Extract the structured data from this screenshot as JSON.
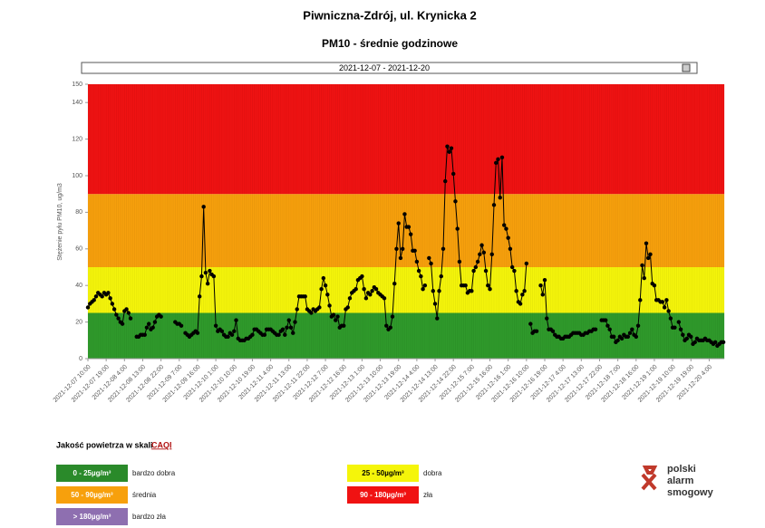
{
  "chart_data": {
    "type": "line",
    "title": "Piwniczna-Zdrój, ul. Krynicka 2",
    "subtitle": "PM10 - średnie godzinowe",
    "date_range": "2021-12-07  -  2021-12-20",
    "y_label": "Stężenie pyłu PM10, ug/m3",
    "color": "#000000",
    "ylim": [
      0,
      150
    ],
    "yticks": [
      0,
      20,
      40,
      60,
      80,
      100,
      120,
      140,
      150
    ],
    "bands": [
      {
        "from": 0,
        "to": 25,
        "color": "#2f9a2b"
      },
      {
        "from": 25,
        "to": 50,
        "color": "#f5f50a"
      },
      {
        "from": 50,
        "to": 90,
        "color": "#f7a00c"
      },
      {
        "from": 90,
        "to": 150,
        "color": "#f01212"
      }
    ],
    "categories": [
      "2021-12-07 10:00",
      null,
      null,
      null,
      null,
      null,
      null,
      null,
      null,
      "2021-12-07 19:00",
      null,
      null,
      null,
      null,
      null,
      null,
      null,
      null,
      "2021-12-08 4:00",
      null,
      null,
      null,
      null,
      null,
      null,
      null,
      null,
      "2021-12-08 13:00",
      null,
      null,
      null,
      null,
      null,
      null,
      null,
      null,
      "2021-12-08 22:00",
      null,
      null,
      null,
      null,
      null,
      null,
      null,
      null,
      "2021-12-09 7:00",
      null,
      null,
      null,
      null,
      null,
      null,
      null,
      null,
      "2021-12-09 16:00",
      null,
      null,
      null,
      null,
      null,
      null,
      null,
      null,
      "2021-12-10 1:00",
      null,
      null,
      null,
      null,
      null,
      null,
      null,
      null,
      "2021-12-10 10:00",
      null,
      null,
      null,
      null,
      null,
      null,
      null,
      null,
      "2021-12-10 19:00",
      null,
      null,
      null,
      null,
      null,
      null,
      null,
      null,
      "2021-12-11 4:00",
      null,
      null,
      null,
      null,
      null,
      null,
      null,
      null,
      "2021-12-11 13:00",
      null,
      null,
      null,
      null,
      null,
      null,
      null,
      null,
      "2021-12-11 22:00",
      null,
      null,
      null,
      null,
      null,
      null,
      null,
      null,
      "2021-12-12 7:00",
      null,
      null,
      null,
      null,
      null,
      null,
      null,
      null,
      "2021-12-12 16:00",
      null,
      null,
      null,
      null,
      null,
      null,
      null,
      null,
      "2021-12-13 1:00",
      null,
      null,
      null,
      null,
      null,
      null,
      null,
      null,
      "2021-12-13 10:00",
      null,
      null,
      null,
      null,
      null,
      null,
      null,
      null,
      "2021-12-13 19:00",
      null,
      null,
      null,
      null,
      null,
      null,
      null,
      null,
      "2021-12-14 4:00",
      null,
      null,
      null,
      null,
      null,
      null,
      null,
      null,
      "2021-12-14 13:00",
      null,
      null,
      null,
      null,
      null,
      null,
      null,
      null,
      "2021-12-14 22:00",
      null,
      null,
      null,
      null,
      null,
      null,
      null,
      null,
      "2021-12-15 7:00",
      null,
      null,
      null,
      null,
      null,
      null,
      null,
      null,
      "2021-12-15 16:00",
      null,
      null,
      null,
      null,
      null,
      null,
      null,
      null,
      "2021-12-16 1:00",
      null,
      null,
      null,
      null,
      null,
      null,
      null,
      null,
      "2021-12-16 10:00",
      null,
      null,
      null,
      null,
      null,
      null,
      null,
      null,
      "2021-12-16 19:00",
      null,
      null,
      null,
      null,
      null,
      null,
      null,
      null,
      "2021-12-17 4:00",
      null,
      null,
      null,
      null,
      null,
      null,
      null,
      null,
      "2021-12-17 13:00",
      null,
      null,
      null,
      null,
      null,
      null,
      null,
      null,
      "2021-12-17 22:00",
      null,
      null,
      null,
      null,
      null,
      null,
      null,
      null,
      "2021-12-18 7:00",
      null,
      null,
      null,
      null,
      null,
      null,
      null,
      null,
      "2021-12-18 16:00",
      null,
      null,
      null,
      null,
      null,
      null,
      null,
      null,
      "2021-12-19 1:00",
      null,
      null,
      null,
      null,
      null,
      null,
      null,
      null,
      "2021-12-19 10:00",
      null,
      null,
      null,
      null,
      null,
      null,
      null,
      null,
      "2021-12-19 19:00",
      null,
      null,
      null,
      null,
      null,
      null,
      null,
      null,
      "2021-12-20 4:00",
      null,
      null,
      null,
      null,
      null,
      null,
      null
    ],
    "values": [
      28,
      30,
      31,
      32,
      34,
      36,
      35,
      34,
      36,
      35,
      36,
      33,
      30,
      27,
      24,
      22,
      20,
      19,
      26,
      27,
      25,
      22,
      null,
      null,
      12,
      12,
      13,
      13,
      13,
      17,
      19,
      16,
      17,
      20,
      23,
      24,
      23,
      null,
      null,
      null,
      null,
      null,
      null,
      20,
      19,
      19,
      18,
      null,
      14,
      13,
      12,
      13,
      14,
      15,
      14,
      34,
      45,
      83,
      47,
      41,
      48,
      46,
      45,
      18,
      15,
      16,
      15,
      13,
      12,
      12,
      14,
      13,
      15,
      21,
      11,
      10,
      10,
      10,
      11,
      11,
      12,
      13,
      16,
      16,
      15,
      14,
      13,
      13,
      16,
      16,
      16,
      15,
      14,
      13,
      13,
      15,
      16,
      13,
      17,
      21,
      17,
      14,
      20,
      27,
      34,
      34,
      34,
      34,
      27,
      26,
      25,
      27,
      26,
      27,
      28,
      38,
      44,
      40,
      35,
      29,
      23,
      24,
      21,
      23,
      17,
      18,
      18,
      27,
      28,
      33,
      36,
      37,
      38,
      43,
      44,
      45,
      38,
      33,
      36,
      35,
      37,
      39,
      38,
      36,
      35,
      34,
      33,
      18,
      16,
      17,
      23,
      41,
      60,
      74,
      55,
      60,
      79,
      72,
      72,
      68,
      59,
      59,
      53,
      48,
      45,
      38,
      40,
      null,
      55,
      52,
      37,
      30,
      22,
      37,
      45,
      60,
      97,
      116,
      113,
      115,
      101,
      86,
      71,
      53,
      40,
      40,
      40,
      36,
      37,
      37,
      48,
      50,
      53,
      57,
      62,
      58,
      48,
      40,
      38,
      57,
      84,
      107,
      109,
      88,
      110,
      73,
      71,
      66,
      60,
      50,
      48,
      37,
      31,
      30,
      35,
      37,
      52,
      null,
      19,
      14,
      15,
      15,
      null,
      40,
      35,
      43,
      22,
      16,
      16,
      15,
      13,
      12,
      12,
      11,
      11,
      12,
      12,
      12,
      13,
      14,
      14,
      14,
      14,
      13,
      13,
      14,
      14,
      15,
      15,
      16,
      16,
      null,
      null,
      21,
      21,
      21,
      18,
      16,
      12,
      12,
      9,
      10,
      12,
      11,
      13,
      12,
      12,
      14,
      16,
      13,
      12,
      18,
      32,
      51,
      44,
      63,
      55,
      57,
      41,
      40,
      32,
      32,
      31,
      31,
      28,
      32,
      26,
      22,
      17,
      17,
      null,
      20,
      16,
      13,
      10,
      11,
      13,
      12,
      8,
      9,
      11,
      10,
      10,
      10,
      11,
      10,
      10,
      9,
      8,
      9,
      7,
      8,
      9,
      9
    ],
    "legend": {
      "title": "Jakość powietrza w skali",
      "link": "CAQI",
      "items": [
        {
          "label": "0 - 25µg/m³",
          "description": "bardzo dobra",
          "color": "#2a8a2a"
        },
        {
          "label": "25 - 50µg/m³",
          "description": "dobra",
          "color": "#f5f50a"
        },
        {
          "label": "50 - 90µg/m³",
          "description": "średnia",
          "color": "#f7a00c"
        },
        {
          "label": "90 - 180µg/m³",
          "description": "zła",
          "color": "#f01212"
        },
        {
          "label": "> 180µg/m³",
          "description": "bardzo zła",
          "color": "#8e6fb0"
        }
      ]
    },
    "logo": [
      "polski",
      "alarm",
      "smogowy"
    ]
  }
}
